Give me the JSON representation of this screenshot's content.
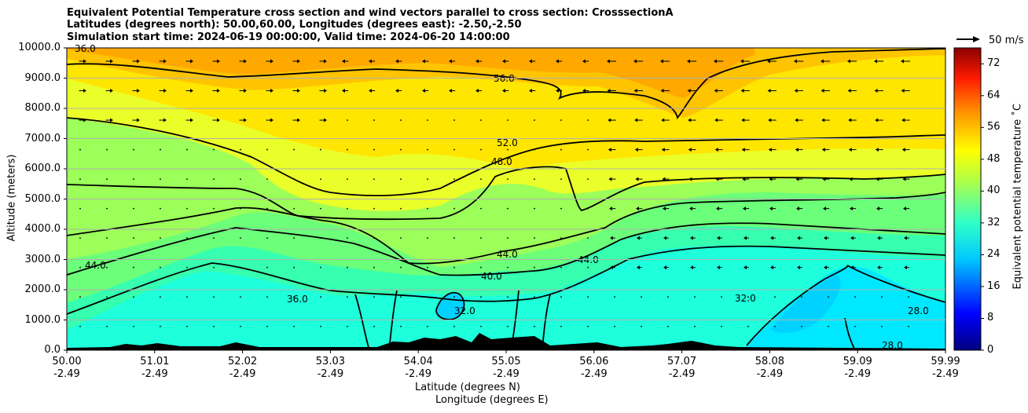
{
  "chart_data": {
    "type": "heatmap",
    "title_lines": [
      "Equivalent Potential Temperature cross section and wind vectors parallel to cross section: CrosssectionA",
      "Latitudes (degrees north): 50.00,60.00, Longitudes (degrees east): -2.50,-2.50",
      "Simulation start time: 2024-06-19 00:00:00, Valid time: 2024-06-20 14:00:00"
    ],
    "ylabel": "Altitude (meters)",
    "xlabel": "Latitude (degrees N)",
    "xlabel2": "Longitude (degrees E)",
    "ylim": [
      0,
      10000
    ],
    "yticks": [
      "0.0",
      "1000.0",
      "2000.0",
      "3000.0",
      "4000.0",
      "5000.0",
      "6000.0",
      "7000.0",
      "8000.0",
      "9000.0",
      "10000.0"
    ],
    "xticks": [
      {
        "lat": "50.00",
        "lon": "-2.49"
      },
      {
        "lat": "51.01",
        "lon": "-2.49"
      },
      {
        "lat": "52.02",
        "lon": "-2.49"
      },
      {
        "lat": "53.03",
        "lon": "-2.49"
      },
      {
        "lat": "54.04",
        "lon": "-2.49"
      },
      {
        "lat": "55.05",
        "lon": "-2.49"
      },
      {
        "lat": "56.06",
        "lon": "-2.49"
      },
      {
        "lat": "57.07",
        "lon": "-2.49"
      },
      {
        "lat": "58.08",
        "lon": "-2.49"
      },
      {
        "lat": "59.09",
        "lon": "-2.49"
      },
      {
        "lat": "59.99",
        "lon": "-2.49"
      }
    ],
    "grid": "horizontal",
    "colorbar": {
      "label": "Equivalent potential temperature  ˚C",
      "range": [
        0,
        76
      ],
      "ticks": [
        "0",
        "8",
        "16",
        "24",
        "32",
        "40",
        "48",
        "56",
        "64",
        "72"
      ]
    },
    "quiver_key": "50 m/s",
    "contour_labels": [
      "36.0",
      "56.0",
      "52.0",
      "48.0",
      "44.0",
      "40.0",
      "32.0",
      "28.0"
    ],
    "layers": [
      {
        "theta_e": 60,
        "base_m": 9000
      },
      {
        "theta_e": 54,
        "base_m": 7000
      },
      {
        "theta_e": 50,
        "base_m": 6000
      },
      {
        "theta_e": 44,
        "base_m": 4000
      },
      {
        "theta_e": 40,
        "base_m": 2800
      },
      {
        "theta_e": 34,
        "base_m": 1500
      },
      {
        "theta_e": 30,
        "base_m": 700
      }
    ]
  }
}
